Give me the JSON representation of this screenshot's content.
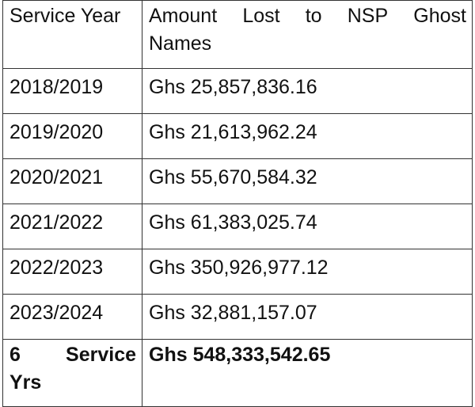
{
  "table": {
    "header": {
      "col1": "Service Year",
      "col2_line1_words": [
        "Amount",
        "Lost",
        "to",
        "NSP",
        "Ghost"
      ],
      "col2_line2": "Names"
    },
    "rows": [
      {
        "year": "2018/2019",
        "amount": "Ghs 25,857,836.16"
      },
      {
        "year": "2019/2020",
        "amount": "Ghs 21,613,962.24"
      },
      {
        "year": "2020/2021",
        "amount": "Ghs 55,670,584.32"
      },
      {
        "year": "2021/2022",
        "amount": "Ghs 61,383,025.74"
      },
      {
        "year": "2022/2023",
        "amount": "Ghs 350,926,977.12"
      },
      {
        "year": "2023/2024",
        "amount": "Ghs 32,881,157.07"
      }
    ],
    "total": {
      "label_line1_words": [
        "6",
        "Service"
      ],
      "label_line2": "Yrs",
      "amount": "Ghs 548,333,542.65"
    }
  }
}
